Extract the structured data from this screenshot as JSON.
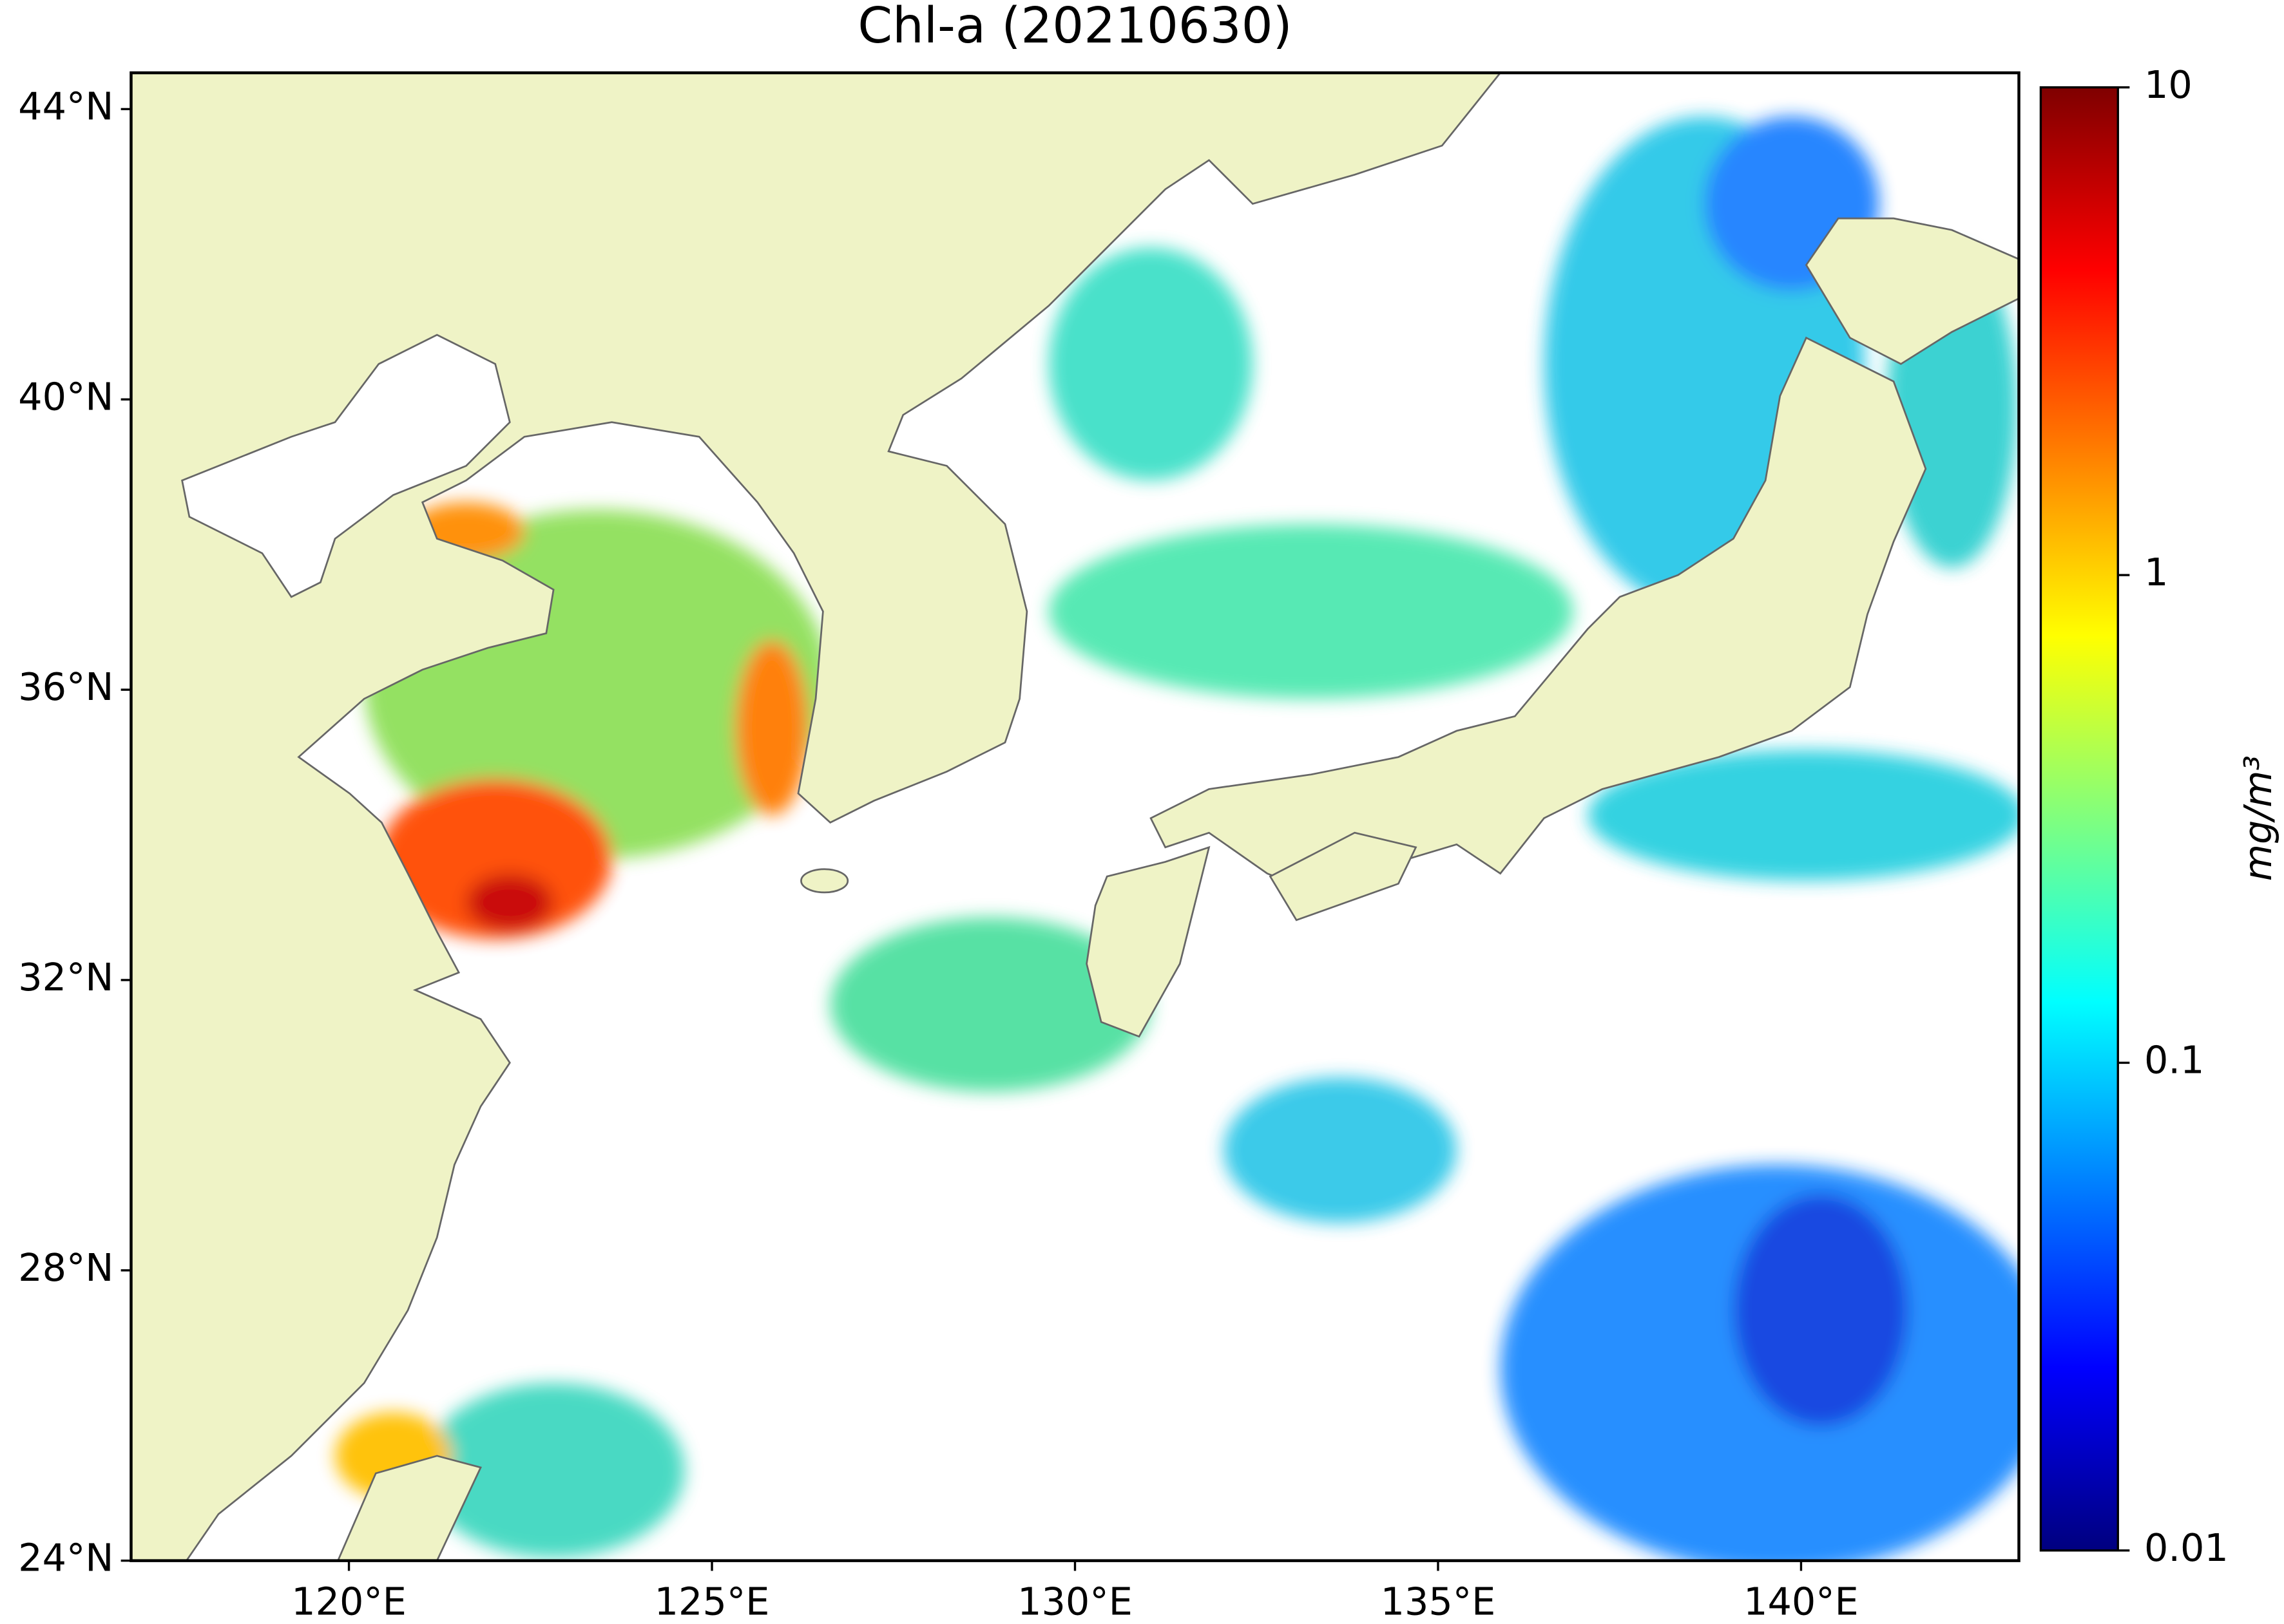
{
  "chart_data": {
    "type": "map",
    "title": "Chl-a (20210630)",
    "xlim": [
      117,
      143
    ],
    "ylim": [
      24,
      44.5
    ],
    "xticks": [
      {
        "value": 120,
        "label": "120°E"
      },
      {
        "value": 125,
        "label": "125°E"
      },
      {
        "value": 130,
        "label": "130°E"
      },
      {
        "value": 135,
        "label": "135°E"
      },
      {
        "value": 140,
        "label": "140°E"
      }
    ],
    "yticks": [
      {
        "value": 24,
        "label": "24°N"
      },
      {
        "value": 28,
        "label": "28°N"
      },
      {
        "value": 32,
        "label": "32°N"
      },
      {
        "value": 36,
        "label": "36°N"
      },
      {
        "value": 40,
        "label": "40°N"
      },
      {
        "value": 44,
        "label": "44°N"
      }
    ],
    "colorbar": {
      "label": "mg/m³",
      "clim": [
        0.01,
        10
      ],
      "log_scale": true,
      "colormap": "jet",
      "ticks": [
        0.01,
        0.1,
        1,
        10
      ]
    }
  }
}
